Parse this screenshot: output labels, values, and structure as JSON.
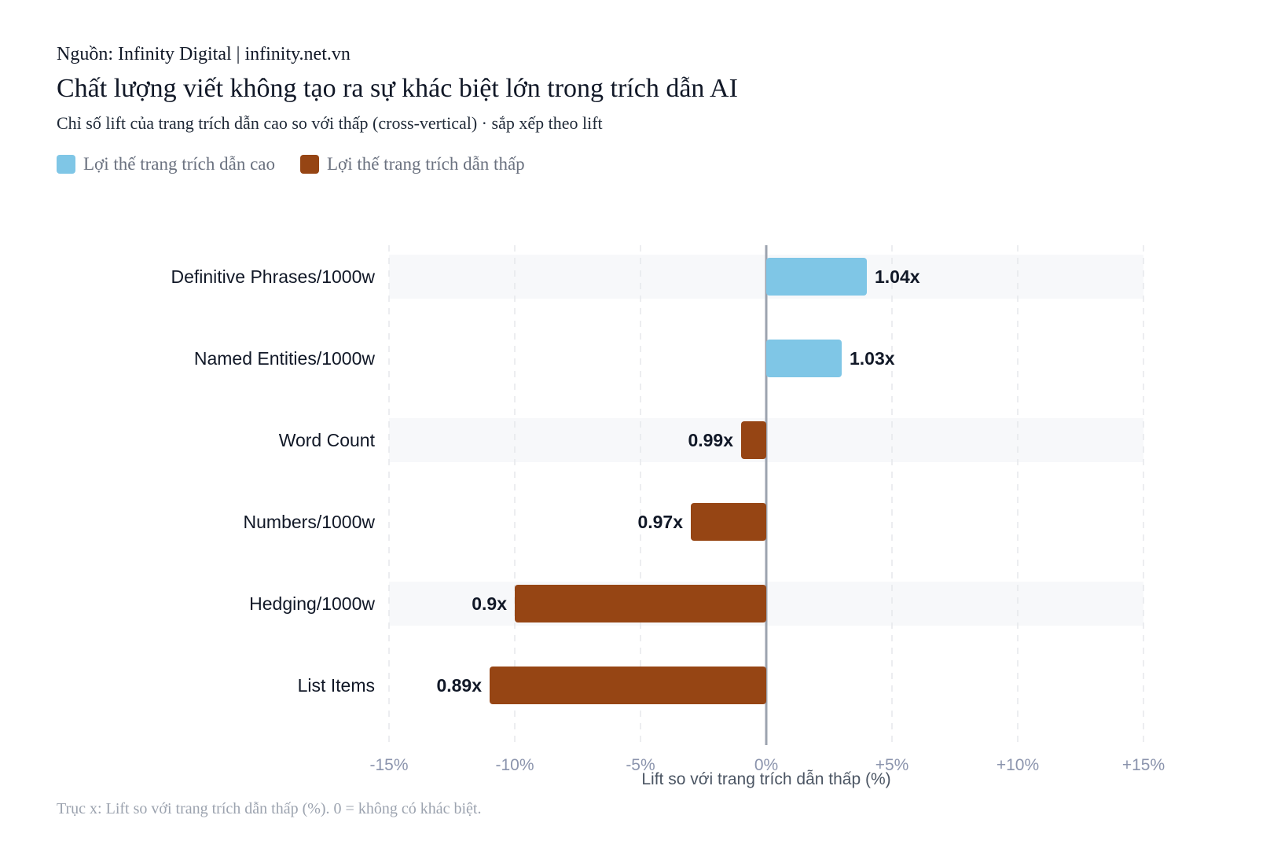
{
  "header": {
    "source": "Nguồn: Infinity Digital | infinity.net.vn",
    "title": "Chất lượng viết không tạo ra sự khác biệt lớn trong trích dẫn AI",
    "subtitle": "Chỉ số lift của trang trích dẫn cao so với thấp (cross-vertical) · sắp xếp theo lift"
  },
  "legend": [
    {
      "label": "Lợi thế trang trích dẫn cao",
      "color": "#7fc6e6"
    },
    {
      "label": "Lợi thế trang trích dẫn thấp",
      "color": "#964514"
    }
  ],
  "footnote": "Trục x: Lift so với trang trích dẫn thấp (%). 0 = không có khác biệt.",
  "chart_data": {
    "type": "bar",
    "orientation": "horizontal",
    "categories": [
      "Definitive Phrases/1000w",
      "Named Entities/1000w",
      "Word Count",
      "Numbers/1000w",
      "Hedging/1000w",
      "List Items"
    ],
    "values": [
      4,
      3,
      -1,
      -3,
      -10,
      -11
    ],
    "value_labels": [
      "1.04x",
      "1.03x",
      "0.99x",
      "0.97x",
      "0.9x",
      "0.89x"
    ],
    "xlabel": "Lift so với trang trích dẫn thấp (%)",
    "xlim": [
      -15,
      15
    ],
    "xticks": [
      -15,
      -10,
      -5,
      0,
      5,
      10,
      15
    ],
    "xtick_labels": [
      "-15%",
      "-10%",
      "-5%",
      "0%",
      "+5%",
      "+10%",
      "+15%"
    ],
    "colors": {
      "positive": "#7fc6e6",
      "negative": "#964514",
      "zero_line": "#9ca3af",
      "band": "#f7f8fa",
      "grid": "#e5e7eb"
    },
    "grid": true
  }
}
